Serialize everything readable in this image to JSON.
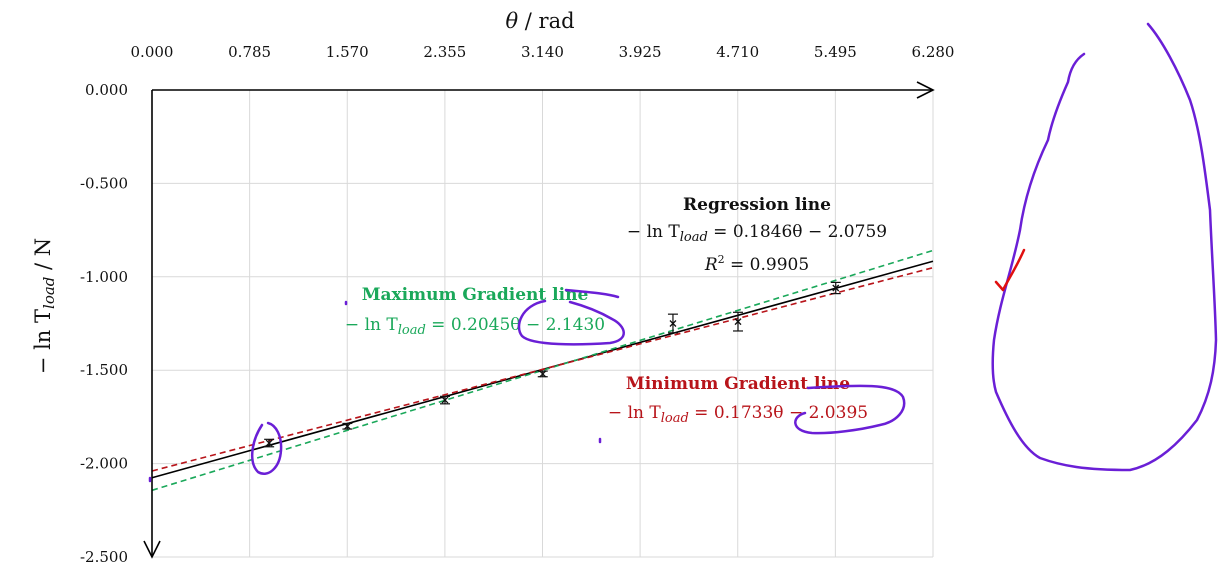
{
  "chart_data": {
    "type": "scatter",
    "xlabel": "θ / rad",
    "ylabel": "−ln T_load / N",
    "xlim": [
      0,
      6.28
    ],
    "ylim": [
      -2.5,
      0
    ],
    "x_ticks": [
      "0.000",
      "0.785",
      "1.570",
      "2.355",
      "3.140",
      "3.925",
      "4.710",
      "5.495",
      "6.280"
    ],
    "y_ticks": [
      "0.000",
      "-0.500",
      "-1.000",
      "-1.500",
      "-2.000",
      "-2.500"
    ],
    "x_axis_position": "top",
    "grid": true,
    "points": [
      {
        "x": 0.942,
        "y": -1.89,
        "err": 0.02
      },
      {
        "x": 1.571,
        "y": -1.8,
        "err": 0.015
      },
      {
        "x": 2.356,
        "y": -1.66,
        "err": 0.02
      },
      {
        "x": 3.142,
        "y": -1.52,
        "err": 0.015
      },
      {
        "x": 4.189,
        "y": -1.25,
        "err": 0.05
      },
      {
        "x": 4.712,
        "y": -1.24,
        "err": 0.05
      },
      {
        "x": 5.498,
        "y": -1.06,
        "err": 0.03
      }
    ],
    "lines": [
      {
        "name": "Regression line",
        "slope": 0.1846,
        "intercept": -2.0759,
        "color": "#000000",
        "dash": "solid"
      },
      {
        "name": "Maximum Gradient line",
        "slope": 0.2045,
        "intercept": -2.143,
        "color": "#1aa85a",
        "dash": "dashed"
      },
      {
        "name": "Minimum Gradient line",
        "slope": 0.1733,
        "intercept": -2.0395,
        "color": "#b8141a",
        "dash": "dashed"
      }
    ],
    "annotations": {
      "regression": {
        "title": "Regression line",
        "eq_prefix": "− ln T",
        "eq_sub": "load",
        "eq_rest": " = 0.1846θ − 2.0759",
        "r2_prefix": "R",
        "r2_sup": "2",
        "r2_rest": " = 0.9905"
      },
      "maximum": {
        "title": "Maximum Gradient line",
        "eq_prefix": "− ln T",
        "eq_sub": "load",
        "eq_rest": " = 0.2045θ − 2.1430"
      },
      "minimum": {
        "title": "Minimum Gradient line",
        "eq_prefix": "− ln T",
        "eq_sub": "load",
        "eq_rest": " = 0.1733θ − 2.0395"
      }
    }
  },
  "axis_titles": {
    "x_prefix": "θ",
    "x_rest": " / rad",
    "y_prefix": "− ln T",
    "y_sub": "load",
    "y_rest": " / N"
  },
  "colors": {
    "grid": "#d9d9d9",
    "axis": "#000000",
    "max_line": "#1aa85a",
    "min_line": "#b8141a",
    "ink_purple": "#6a1fd6",
    "ink_red": "#e01010"
  }
}
